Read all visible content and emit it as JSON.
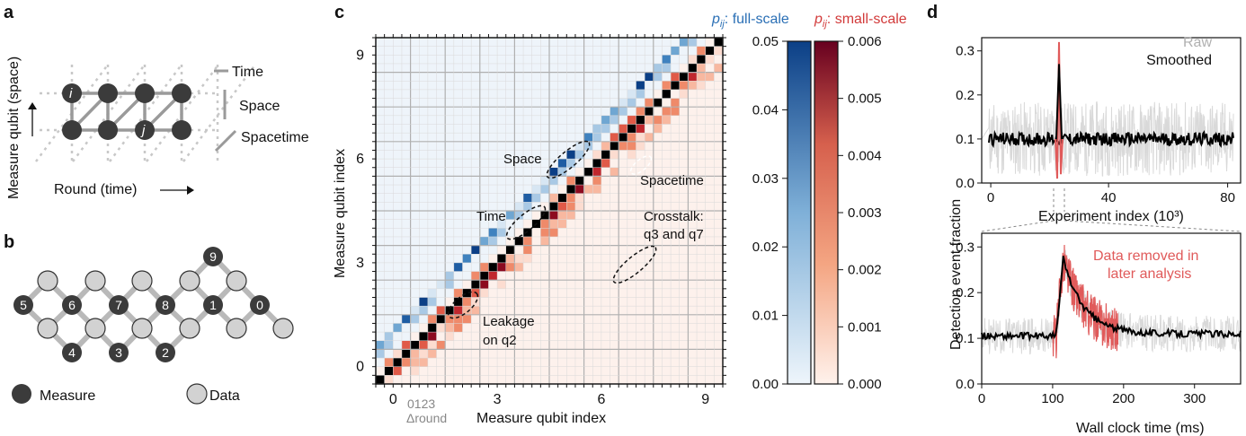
{
  "panels": {
    "a": {
      "label": "a",
      "y_axis": "Measure qubit (space)",
      "x_axis": "Round (time)",
      "node_i": "i",
      "node_j": "j",
      "legend": [
        "Time",
        "Space",
        "Spacetime"
      ]
    },
    "b": {
      "label": "b",
      "measure_nodes": [
        "9",
        "5",
        "6",
        "7",
        "8",
        "1",
        "0",
        "4",
        "3",
        "2"
      ],
      "legend_measure": "Measure",
      "legend_data": "Data"
    },
    "c": {
      "label": "c",
      "ylabel": "Measure qubit index",
      "xlabel": "Measure qubit index",
      "x_ticks": [
        "0",
        "3",
        "6",
        "9"
      ],
      "y_ticks": [
        "0",
        "3",
        "6",
        "9"
      ],
      "delta_round_ticks": "0123",
      "delta_round_label": "Δround",
      "annotations": [
        "Space",
        "Time",
        "Spacetime",
        "Crosstalk:",
        "q3 and q7",
        "Leakage",
        "on q2"
      ],
      "cbar_full_title_sym": "p",
      "cbar_full_title_sub": "ij",
      "cbar_full_title_rest": ": full-scale",
      "cbar_small_title_sym": "p",
      "cbar_small_title_sub": "ij",
      "cbar_small_title_rest": ": small-scale",
      "cbar_full_ticks": [
        "0.05",
        "0.04",
        "0.03",
        "0.02",
        "0.01",
        "0.00"
      ],
      "cbar_small_ticks": [
        "0.006",
        "0.005",
        "0.004",
        "0.003",
        "0.002",
        "0.001",
        "0.000"
      ],
      "colors": {
        "full_scale": "#2a6fb5",
        "small_scale": "#b2182b"
      }
    },
    "d": {
      "label": "d",
      "ylabel": "Detection event fraction",
      "top": {
        "xlabel": "Experiment index (10³)",
        "x_ticks": [
          "0",
          "40",
          "80"
        ],
        "y_ticks": [
          "0.3",
          "0.2",
          "0.1",
          "0.0"
        ],
        "legend_raw": "Raw",
        "legend_smoothed": "Smoothed"
      },
      "bottom": {
        "xlabel": "Wall clock time (ms)",
        "x_ticks": [
          "0",
          "100",
          "200",
          "300"
        ],
        "y_ticks": [
          "0.3",
          "0.2",
          "0.1",
          "0.0"
        ],
        "annotation_line1": "Data removed in",
        "annotation_line2": "later analysis"
      },
      "colors": {
        "raw": "#d9d9d9",
        "smoothed": "#000000",
        "removed": "#e05a5a"
      }
    }
  }
}
